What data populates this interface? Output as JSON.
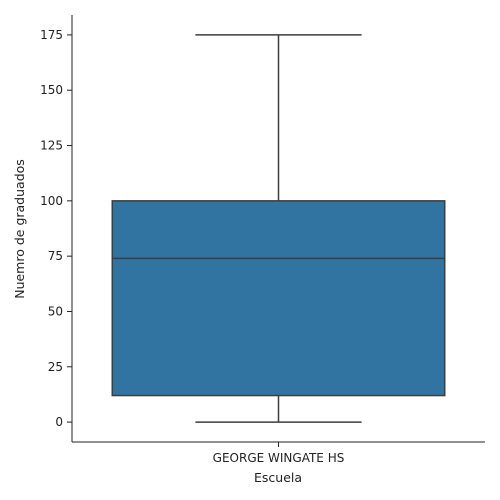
{
  "chart_data": {
    "type": "box",
    "title": "",
    "xlabel": "Escuela",
    "ylabel": "Nuemro de graduados",
    "categories": [
      "GEORGE WINGATE HS"
    ],
    "boxes": [
      {
        "category": "GEORGE WINGATE HS",
        "whisker_low": 0,
        "q1": 12,
        "median": 74,
        "q3": 100,
        "whisker_high": 175
      }
    ],
    "y_ticks": [
      0,
      25,
      50,
      75,
      100,
      125,
      150,
      175
    ],
    "ylim": [
      -9,
      184
    ],
    "grid": false,
    "legend": "none",
    "colors": {
      "box_fill": "#3274a1",
      "box_line": "#3d3d3d",
      "axis": "#222222"
    }
  }
}
